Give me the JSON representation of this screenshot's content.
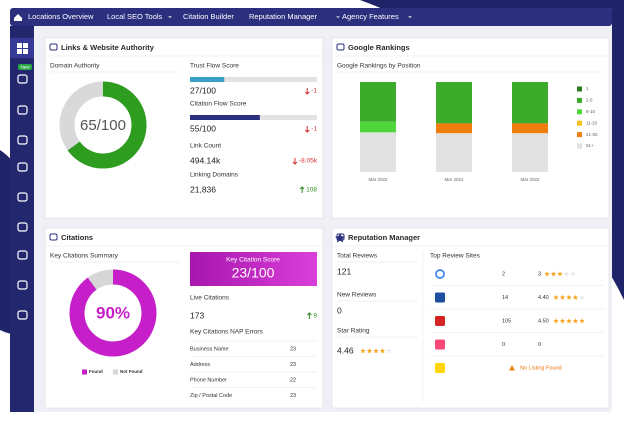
{
  "nav": {
    "items": [
      "Locations Overview",
      "Local SEO Tools",
      "Citation Builder",
      "Reputation Manager",
      "Agency Features"
    ]
  },
  "sidebar": {
    "badge": "New"
  },
  "links_panel": {
    "title": "Links & Website Authority",
    "domain_authority": {
      "label": "Domain Authority",
      "value": 65,
      "max": 100,
      "value_label": "65/100",
      "color": "#2e9c1f"
    },
    "trust_flow": {
      "label": "Trust Flow Score",
      "value": 27,
      "max": 100,
      "value_label": "27/100",
      "change": -1,
      "color": "#3a9fc4"
    },
    "citation_flow": {
      "label": "Citation Flow Score",
      "value": 55,
      "max": 100,
      "value_label": "55/100",
      "change": -1,
      "color": "#2b2f7e"
    },
    "link_count": {
      "label": "Link Count",
      "value": 494140,
      "value_label": "494.14k",
      "change": -8050,
      "change_label": "-8.05k"
    },
    "linking_domains": {
      "label": "Linking Domains",
      "value": 21836,
      "value_label": "21,836",
      "change": 108
    }
  },
  "rankings_panel": {
    "title": "Google Rankings",
    "subtitle": "Google Rankings by Position",
    "chart": {
      "type": "bar",
      "stacked": true,
      "categories": [
        "Mar 2022",
        "Mar 2022",
        "Mar 2022"
      ],
      "ylim": [
        0,
        100
      ],
      "series": [
        {
          "name": "1",
          "color": "#2a7d1c",
          "values": [
            0,
            0,
            0
          ]
        },
        {
          "name": "2-5",
          "color": "#3caa2b",
          "values": [
            44,
            46,
            46
          ]
        },
        {
          "name": "6-10",
          "color": "#4fd63a",
          "values": [
            12,
            0,
            0
          ]
        },
        {
          "name": "11-20",
          "color": "#f4c21a",
          "values": [
            0,
            0,
            0
          ]
        },
        {
          "name": "21-50",
          "color": "#f07e0c",
          "values": [
            0,
            11,
            11
          ]
        },
        {
          "name": "51+",
          "color": "#e2e2e2",
          "values": [
            44,
            43,
            43
          ]
        }
      ]
    }
  },
  "citations_panel": {
    "title": "Citations",
    "summary": {
      "label": "Key Citations Summary",
      "value": 90,
      "max": 100,
      "value_label": "90%",
      "legend": [
        "Found",
        "Not Found"
      ],
      "colors": [
        "#c61fca",
        "#d6d6d6"
      ]
    },
    "score": {
      "label": "Key Citation Score",
      "value": 23,
      "max": 100,
      "value_label": "23/100"
    },
    "live": {
      "label": "Live Citations",
      "value": 173,
      "change": 9
    },
    "nap": {
      "label": "Key Citations NAP Errors",
      "rows": [
        [
          "Business Name",
          23
        ],
        [
          "Address",
          23
        ],
        [
          "Phone Number",
          22
        ],
        [
          "Zip / Postal Code",
          23
        ]
      ]
    }
  },
  "reputation_panel": {
    "title": "Reputation Manager",
    "total_reviews": {
      "label": "Total Reviews",
      "value": 121
    },
    "new_reviews": {
      "label": "New Reviews",
      "value": 0
    },
    "star_rating": {
      "label": "Star Rating",
      "value": 4.46
    },
    "top_sites": {
      "label": "Top Review Sites",
      "rows": [
        {
          "reviews": 2,
          "rating": 3
        },
        {
          "reviews": 14,
          "rating": 4.4,
          "rating_label": "4.40"
        },
        {
          "reviews": 105,
          "rating": 4.5,
          "rating_label": "4.50"
        },
        {
          "reviews": 0,
          "rating": 0
        },
        {
          "status": "No Listing Found"
        }
      ]
    }
  }
}
